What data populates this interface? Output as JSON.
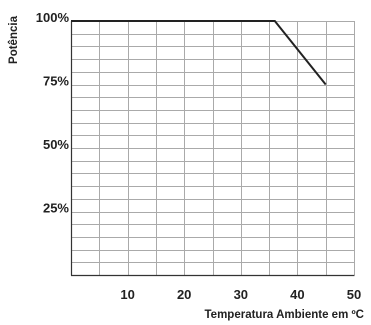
{
  "chart_data": {
    "type": "line",
    "title": "",
    "xlabel": "Temperatura Ambiente em ºC",
    "ylabel": "Potência",
    "xlim": [
      0,
      50
    ],
    "ylim": [
      0,
      100
    ],
    "xticks": [
      {
        "value": 10,
        "label": "10"
      },
      {
        "value": 20,
        "label": "20"
      },
      {
        "value": 30,
        "label": "30"
      },
      {
        "value": 40,
        "label": "40"
      },
      {
        "value": 50,
        "label": "50"
      }
    ],
    "yticks": [
      {
        "value": 25,
        "label": "25%"
      },
      {
        "value": 50,
        "label": "50%"
      },
      {
        "value": 75,
        "label": "75%"
      },
      {
        "value": 100,
        "label": "100%"
      }
    ],
    "grid": true,
    "grid_x_step": 5,
    "grid_y_step": 5,
    "series": [
      {
        "x": [
          0,
          36,
          45
        ],
        "y": [
          100,
          100,
          75
        ]
      }
    ],
    "colors": {
      "line": "#222222",
      "grid": "#aaaaaa",
      "axis": "#333333"
    }
  }
}
